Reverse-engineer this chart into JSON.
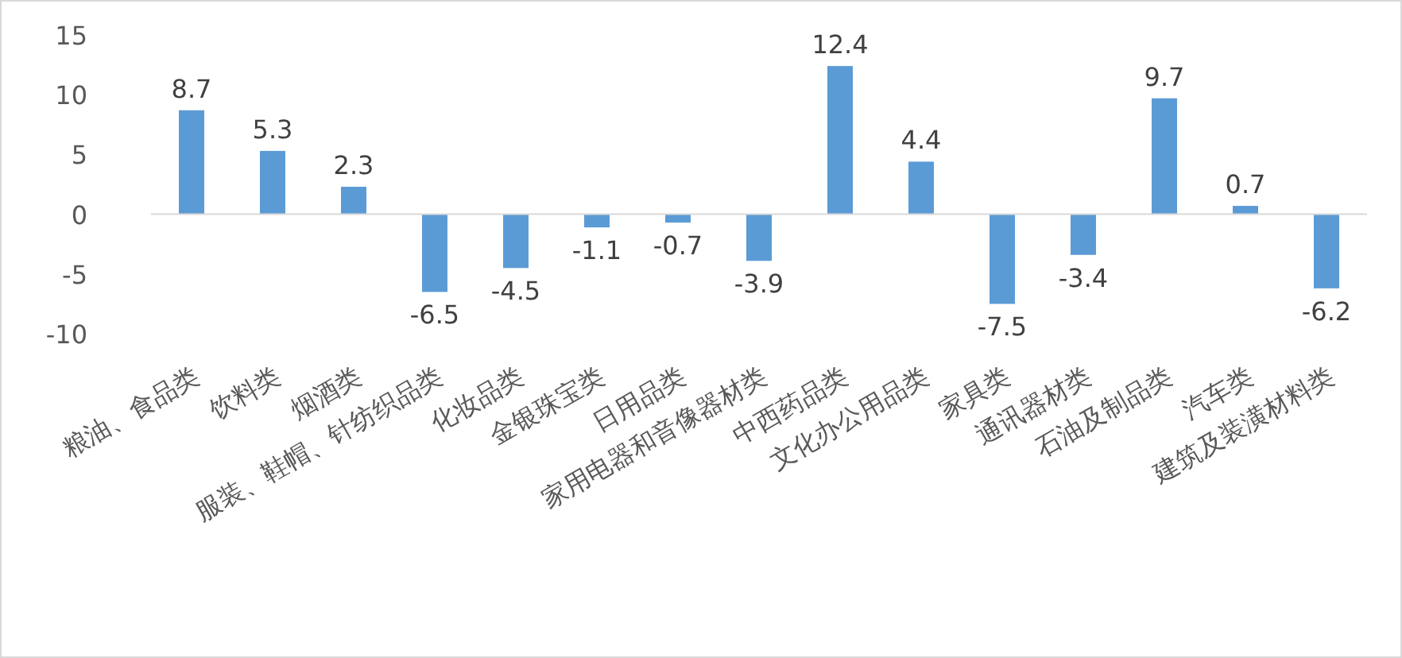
{
  "chart_data": {
    "type": "bar",
    "categories": [
      "粮油、食品类",
      "饮料类",
      "烟酒类",
      "服装、鞋帽、针纺织品类",
      "化妆品类",
      "金银珠宝类",
      "日用品类",
      "家用电器和音像器材类",
      "中西药品类",
      "文化办公用品类",
      "家具类",
      "通讯器材类",
      "石油及制品类",
      "汽车类",
      "建筑及装潢材料类"
    ],
    "values": [
      8.7,
      5.3,
      2.3,
      -6.5,
      -4.5,
      -1.1,
      -0.7,
      -3.9,
      12.4,
      4.4,
      -7.5,
      -3.4,
      9.7,
      0.7,
      -6.2
    ],
    "color": "#5b9bd5",
    "ylim": [
      -10,
      15
    ],
    "yticks": [
      -10,
      -5,
      0,
      5,
      10,
      15
    ],
    "data_labels": true
  }
}
